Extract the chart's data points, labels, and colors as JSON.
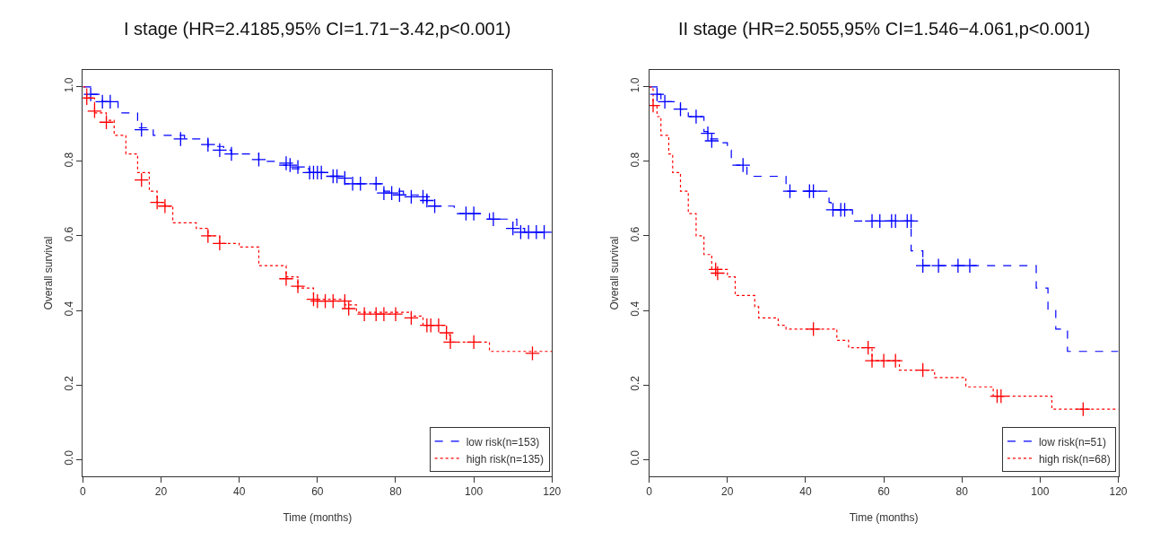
{
  "chart_data": [
    {
      "type": "step",
      "title": "I stage (HR=2.4185,95% CI=1.71−3.42,p<0.001)",
      "xlabel": "Time (months)",
      "ylabel": "Overall survival",
      "xlim": [
        0,
        120
      ],
      "ylim": [
        -0.045,
        1.045
      ],
      "xticks": [
        0,
        20,
        40,
        60,
        80,
        100,
        120
      ],
      "yticks": [
        {
          "value": 0,
          "label": "0.0"
        },
        {
          "value": 0.2,
          "label": "0.2"
        },
        {
          "value": 0.4,
          "label": "0.4"
        },
        {
          "value": 0.6,
          "label": "0.6"
        },
        {
          "value": 0.8,
          "label": "0.8"
        },
        {
          "value": 1,
          "label": "1.0"
        }
      ],
      "legend": "bottom right",
      "series": [
        {
          "name": "low risk(n=153)",
          "color": "#0000ff",
          "line_style": "dashed",
          "x": [
            0,
            2,
            5,
            9,
            14,
            18,
            26,
            32,
            36,
            38,
            45,
            50,
            53,
            58,
            64,
            67,
            77,
            82,
            88,
            90,
            95,
            104,
            111,
            113,
            120
          ],
          "values": [
            1.0,
            0.98,
            0.96,
            0.93,
            0.89,
            0.87,
            0.86,
            0.84,
            0.83,
            0.82,
            0.8,
            0.79,
            0.78,
            0.77,
            0.76,
            0.74,
            0.72,
            0.71,
            0.69,
            0.68,
            0.66,
            0.645,
            0.62,
            0.61,
            0.61
          ]
        },
        {
          "name": "high risk(n=135)",
          "color": "#ff0000",
          "line_style": "dotted",
          "x": [
            0,
            1,
            3,
            6,
            8,
            11,
            14,
            17,
            19,
            21,
            23,
            29,
            32,
            35,
            40,
            45,
            52,
            55,
            59,
            67,
            70,
            84,
            87,
            93,
            94,
            104,
            120
          ],
          "values": [
            1.0,
            0.97,
            0.93,
            0.91,
            0.87,
            0.82,
            0.77,
            0.72,
            0.69,
            0.68,
            0.635,
            0.62,
            0.6,
            0.58,
            0.57,
            0.52,
            0.49,
            0.46,
            0.43,
            0.415,
            0.395,
            0.385,
            0.36,
            0.335,
            0.315,
            0.29,
            0.29
          ]
        },
        {
          "color": "#0000ff",
          "type": "scatter",
          "marker": "cross",
          "x": [
            2,
            5,
            7,
            15,
            25,
            32,
            35,
            38,
            45,
            52,
            53,
            55,
            58,
            59,
            60,
            61,
            64,
            65,
            67,
            69,
            71,
            75,
            77,
            79,
            81,
            84,
            87,
            88,
            90,
            98,
            100,
            105,
            110,
            112,
            114,
            116,
            118
          ],
          "values": [
            0.98,
            0.96,
            0.96,
            0.885,
            0.86,
            0.845,
            0.83,
            0.82,
            0.805,
            0.795,
            0.79,
            0.785,
            0.77,
            0.77,
            0.77,
            0.77,
            0.76,
            0.76,
            0.755,
            0.74,
            0.74,
            0.74,
            0.715,
            0.715,
            0.71,
            0.705,
            0.705,
            0.695,
            0.68,
            0.66,
            0.66,
            0.645,
            0.62,
            0.61,
            0.61,
            0.61,
            0.61
          ]
        },
        {
          "color": "#ff0000",
          "type": "scatter",
          "marker": "cross",
          "x": [
            1,
            3,
            6,
            15,
            19,
            21,
            32,
            35,
            52,
            55,
            59,
            60,
            62,
            64,
            67,
            68,
            72,
            75,
            77,
            80,
            84,
            88,
            89,
            91,
            93,
            94,
            100,
            115
          ],
          "values": [
            0.97,
            0.935,
            0.905,
            0.75,
            0.69,
            0.68,
            0.6,
            0.58,
            0.485,
            0.465,
            0.43,
            0.425,
            0.425,
            0.425,
            0.425,
            0.405,
            0.39,
            0.39,
            0.39,
            0.39,
            0.38,
            0.36,
            0.36,
            0.36,
            0.34,
            0.315,
            0.315,
            0.285
          ]
        }
      ]
    },
    {
      "type": "step",
      "title": "II stage (HR=2.5055,95% CI=1.546−4.061,p<0.001)",
      "xlabel": "Time (months)",
      "ylabel": "Overall survival",
      "xlim": [
        0,
        120
      ],
      "ylim": [
        -0.045,
        1.045
      ],
      "xticks": [
        0,
        20,
        40,
        60,
        80,
        100,
        120
      ],
      "yticks": [
        {
          "value": 0,
          "label": "0.0"
        },
        {
          "value": 0.2,
          "label": "0.2"
        },
        {
          "value": 0.4,
          "label": "0.4"
        },
        {
          "value": 0.6,
          "label": "0.6"
        },
        {
          "value": 0.8,
          "label": "0.8"
        },
        {
          "value": 1,
          "label": "1.0"
        }
      ],
      "legend": "bottom right",
      "series": [
        {
          "name": "low risk(n=51)",
          "color": "#0000ff",
          "line_style": "dashed",
          "x": [
            0,
            2,
            3,
            8,
            10,
            14,
            15,
            18,
            20,
            21,
            25,
            35,
            46,
            46.5,
            52,
            67,
            70,
            99,
            102,
            104,
            107,
            120
          ],
          "values": [
            1.0,
            0.98,
            0.96,
            0.94,
            0.92,
            0.88,
            0.86,
            0.85,
            0.83,
            0.79,
            0.76,
            0.72,
            0.69,
            0.67,
            0.64,
            0.56,
            0.52,
            0.46,
            0.4,
            0.35,
            0.29,
            0.29
          ]
        },
        {
          "name": "high risk(n=68)",
          "color": "#ff0000",
          "line_style": "dotted",
          "x": [
            0,
            1,
            2,
            3,
            5,
            6,
            8,
            10,
            12,
            14,
            16,
            20,
            22,
            27,
            28,
            33,
            35,
            48,
            51,
            57,
            64,
            73,
            81,
            88,
            103,
            120
          ],
          "values": [
            1.0,
            0.95,
            0.92,
            0.87,
            0.82,
            0.77,
            0.72,
            0.66,
            0.6,
            0.55,
            0.51,
            0.49,
            0.44,
            0.41,
            0.38,
            0.36,
            0.35,
            0.32,
            0.3,
            0.265,
            0.24,
            0.22,
            0.195,
            0.17,
            0.135,
            0.135
          ]
        },
        {
          "color": "#0000ff",
          "type": "scatter",
          "marker": "cross",
          "x": [
            2,
            4,
            8,
            12,
            15,
            16,
            24,
            36,
            41,
            42,
            47,
            49,
            50,
            57,
            59,
            62,
            63,
            66,
            67,
            70,
            74,
            79,
            82
          ],
          "values": [
            0.98,
            0.96,
            0.94,
            0.92,
            0.875,
            0.855,
            0.79,
            0.72,
            0.72,
            0.72,
            0.67,
            0.67,
            0.67,
            0.64,
            0.64,
            0.64,
            0.64,
            0.64,
            0.64,
            0.52,
            0.52,
            0.52,
            0.52
          ]
        },
        {
          "color": "#ff0000",
          "type": "scatter",
          "marker": "cross",
          "x": [
            1,
            17,
            17.5,
            42,
            56,
            57,
            60,
            63,
            70,
            89,
            90,
            111
          ],
          "values": [
            0.95,
            0.51,
            0.5,
            0.35,
            0.3,
            0.265,
            0.265,
            0.265,
            0.24,
            0.17,
            0.17,
            0.135
          ]
        }
      ]
    }
  ]
}
